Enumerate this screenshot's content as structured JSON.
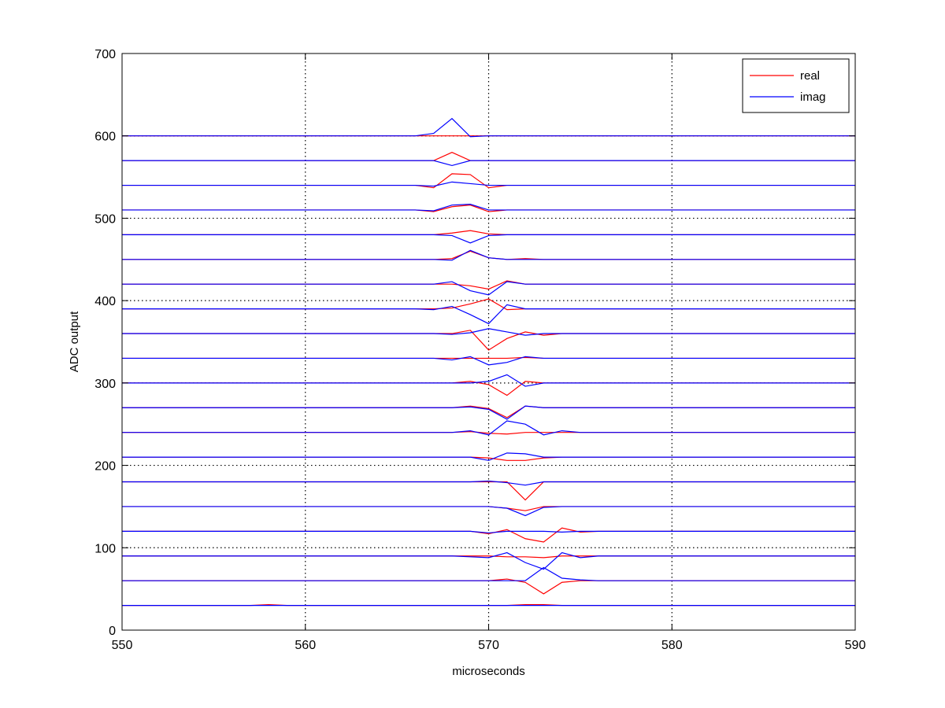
{
  "chart_data": {
    "type": "line",
    "title": "",
    "xlabel": "microseconds",
    "ylabel": "ADC output",
    "xlim": [
      550,
      590
    ],
    "ylim": [
      0,
      700
    ],
    "xticks": [
      550,
      560,
      570,
      580,
      590
    ],
    "yticks": [
      0,
      100,
      200,
      300,
      400,
      500,
      600,
      700
    ],
    "grid": "dotted",
    "legend_position": "top-right",
    "colors": {
      "real": "#ff0000",
      "imag": "#0000ff"
    },
    "legend": [
      {
        "label": "real",
        "color": "#ff0000"
      },
      {
        "label": "imag",
        "color": "#0000ff"
      }
    ],
    "x": [
      550,
      551,
      552,
      553,
      554,
      555,
      556,
      557,
      558,
      559,
      560,
      561,
      562,
      563,
      564,
      565,
      566,
      567,
      568,
      569,
      570,
      571,
      572,
      573,
      574,
      575,
      576,
      577,
      578,
      579,
      580,
      581,
      582,
      583,
      584,
      585,
      586,
      587,
      588,
      589,
      590
    ],
    "baselines": [
      30,
      60,
      90,
      120,
      150,
      180,
      210,
      240,
      270,
      300,
      330,
      360,
      390,
      420,
      450,
      480,
      510,
      540,
      570,
      600
    ],
    "series": [
      {
        "baseline": 30,
        "real": {
          "558": 31,
          "572": 31,
          "573": 31
        },
        "imag": {}
      },
      {
        "baseline": 60,
        "real": {
          "571": 62,
          "572": 58,
          "573": 44,
          "574": 58,
          "575": 60
        },
        "imag": {
          "571": 60,
          "572": 60,
          "573": 76,
          "574": 63,
          "575": 61
        }
      },
      {
        "baseline": 90,
        "real": {
          "571": 89,
          "572": 89,
          "573": 88
        },
        "imag": {
          "569": 89,
          "570": 88,
          "571": 94,
          "572": 82,
          "573": 74,
          "574": 94,
          "575": 88
        }
      },
      {
        "baseline": 120,
        "real": {
          "570": 117,
          "571": 122,
          "572": 111,
          "573": 107,
          "574": 124,
          "575": 119
        },
        "imag": {
          "570": 118,
          "571": 120,
          "572": 120,
          "573": 120,
          "574": 119
        }
      },
      {
        "baseline": 150,
        "real": {
          "571": 148,
          "572": 145,
          "573": 150
        },
        "imag": {
          "570": 150,
          "571": 148,
          "572": 139,
          "573": 149
        }
      },
      {
        "baseline": 180,
        "real": {
          "570": 180,
          "571": 180,
          "572": 158,
          "573": 180
        },
        "imag": {
          "570": 181,
          "571": 179,
          "572": 176,
          "573": 180
        }
      },
      {
        "baseline": 210,
        "real": {
          "569": 210,
          "570": 209,
          "571": 206,
          "572": 206,
          "573": 209
        },
        "imag": {
          "569": 210,
          "570": 206,
          "571": 215,
          "572": 214,
          "573": 210
        }
      },
      {
        "baseline": 240,
        "real": {
          "569": 241,
          "570": 239,
          "571": 238,
          "572": 240
        },
        "imag": {
          "569": 242,
          "570": 237,
          "571": 254,
          "572": 250,
          "573": 237,
          "574": 242
        }
      },
      {
        "baseline": 270,
        "real": {
          "568": 270,
          "569": 272,
          "570": 269,
          "571": 258,
          "572": 272
        },
        "imag": {
          "568": 270,
          "569": 271,
          "570": 268,
          "571": 256,
          "572": 272
        }
      },
      {
        "baseline": 300,
        "real": {
          "569": 302,
          "570": 298,
          "571": 285,
          "572": 302
        },
        "imag": {
          "569": 300,
          "570": 302,
          "571": 310,
          "572": 296
        }
      },
      {
        "baseline": 330,
        "real": {
          "568": 330,
          "569": 330,
          "570": 330,
          "571": 330,
          "572": 331
        },
        "imag": {
          "568": 328,
          "569": 332,
          "570": 322,
          "571": 325,
          "572": 332
        }
      },
      {
        "baseline": 360,
        "real": {
          "568": 360,
          "569": 364,
          "570": 340,
          "571": 354,
          "572": 362,
          "573": 358
        },
        "imag": {
          "568": 359,
          "569": 361,
          "570": 366,
          "571": 362,
          "572": 358,
          "573": 360
        }
      },
      {
        "baseline": 390,
        "real": {
          "568": 391,
          "569": 396,
          "570": 402,
          "571": 389,
          "572": 390
        },
        "imag": {
          "567": 389,
          "568": 393,
          "569": 383,
          "570": 372,
          "571": 395,
          "572": 390
        }
      },
      {
        "baseline": 420,
        "real": {
          "568": 420,
          "569": 418,
          "570": 414,
          "571": 424,
          "572": 420
        },
        "imag": {
          "568": 423,
          "569": 412,
          "570": 407,
          "571": 423,
          "572": 420
        }
      },
      {
        "baseline": 450,
        "real": {
          "568": 451,
          "569": 460,
          "570": 452,
          "571": 450,
          "572": 451
        },
        "imag": {
          "568": 449,
          "569": 461,
          "570": 452,
          "571": 450
        }
      },
      {
        "baseline": 480,
        "real": {
          "568": 482,
          "569": 485,
          "570": 481
        },
        "imag": {
          "567": 480,
          "568": 479,
          "569": 470,
          "570": 479
        }
      },
      {
        "baseline": 510,
        "real": {
          "567": 508,
          "568": 514,
          "569": 516,
          "570": 508
        },
        "imag": {
          "567": 509,
          "568": 516,
          "569": 517,
          "570": 510
        }
      },
      {
        "baseline": 540,
        "real": {
          "567": 537,
          "568": 554,
          "569": 553,
          "570": 537
        },
        "imag": {
          "567": 539,
          "568": 544,
          "569": 542,
          "570": 540
        }
      },
      {
        "baseline": 570,
        "real": {
          "567": 570,
          "568": 580,
          "569": 570
        },
        "imag": {
          "567": 570,
          "568": 564,
          "569": 570
        }
      },
      {
        "baseline": 600,
        "real": {
          "568": 600,
          "569": 600
        },
        "imag": {
          "567": 603,
          "568": 621,
          "569": 599
        }
      }
    ]
  }
}
